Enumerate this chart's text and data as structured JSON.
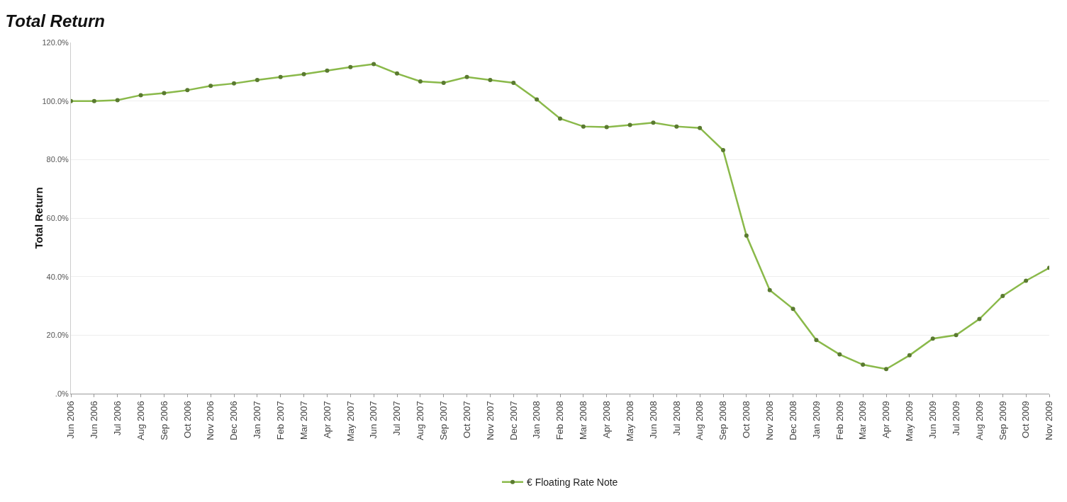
{
  "chart_data": {
    "type": "line",
    "title": "Total Return",
    "ylabel": "Total Return",
    "categories": [
      "Jun 2006",
      "Jun 2006",
      "Jul 2006",
      "Aug 2006",
      "Sep 2006",
      "Oct 2006",
      "Nov 2006",
      "Dec 2006",
      "Jan 2007",
      "Feb 2007",
      "Mar 2007",
      "Apr 2007",
      "May 2007",
      "Jun 2007",
      "Jul 2007",
      "Aug 2007",
      "Sep 2007",
      "Oct 2007",
      "Nov 2007",
      "Dec 2007",
      "Jan 2008",
      "Feb 2008",
      "Mar 2008",
      "Apr 2008",
      "May 2008",
      "Jun 2008",
      "Jul 2008",
      "Aug 2008",
      "Sep 2008",
      "Oct 2008",
      "Nov 2008",
      "Dec 2008",
      "Jan 2009",
      "Feb 2009",
      "Mar 2009",
      "Apr 2009",
      "May 2009",
      "Jun 2009",
      "Jul 2009",
      "Aug 2009",
      "Sep 2009",
      "Oct 2009",
      "Nov 2009"
    ],
    "series": [
      {
        "name": "€ Floating Rate Note",
        "color": "#8ab94a",
        "values": [
          100,
          100,
          100.3,
          102,
          102.7,
          103.7,
          105.2,
          106,
          107.2,
          108.2,
          109.2,
          110.4,
          111.6,
          112.6,
          109.4,
          106.7,
          106.2,
          108.2,
          107.2,
          106.2,
          100.5,
          94,
          91.3,
          91.1,
          91.8,
          92.6,
          91.3,
          90.8,
          83.2,
          54,
          35.4,
          29,
          18.3,
          13.4,
          9.9,
          8.4,
          13.1,
          18.8,
          20,
          25.5,
          33.4,
          38.6,
          43
        ]
      }
    ],
    "ylim": [
      0,
      120
    ],
    "yticks": [
      {
        "value": 0,
        "label": ".0%"
      },
      {
        "value": 20,
        "label": "20.0%"
      },
      {
        "value": 40,
        "label": "40.0%"
      },
      {
        "value": 60,
        "label": "60.0%"
      },
      {
        "value": 80,
        "label": "80.0%"
      },
      {
        "value": 100,
        "label": "100.0%"
      },
      {
        "value": 120,
        "label": "120.0%"
      }
    ],
    "grid": "y",
    "legend": "bottom",
    "marker": "circle",
    "line_style": "solid"
  }
}
